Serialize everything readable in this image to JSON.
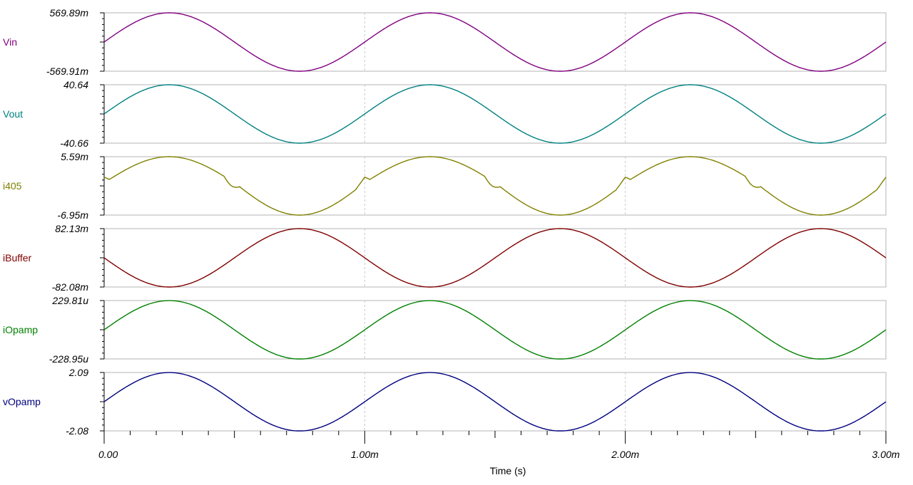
{
  "chart_data": {
    "type": "line",
    "xlabel": "Time (s)",
    "x_range": [
      0,
      0.003
    ],
    "x_ticks": [
      {
        "value": 0,
        "label": "0.00"
      },
      {
        "value": 0.001,
        "label": "1.00m"
      },
      {
        "value": 0.002,
        "label": "2.00m"
      },
      {
        "value": 0.003,
        "label": "3.00m"
      }
    ],
    "grid": "vertical dashed at major x ticks",
    "frequency_hz": 1000,
    "series": [
      {
        "name": "Vin",
        "color": "#800080",
        "ylim": [
          -0.56991,
          0.56989
        ],
        "ymax_label": "569.89m",
        "ymin_label": "-569.91m",
        "shape": "sine",
        "amplitude": 0.5699,
        "phase_deg": 0
      },
      {
        "name": "Vout",
        "color": "#008080",
        "ylim": [
          -40.66,
          40.64
        ],
        "ymax_label": "40.64",
        "ymin_label": "-40.66",
        "shape": "sine",
        "amplitude": 40.65,
        "phase_deg": 0
      },
      {
        "name": "i405",
        "color": "#808000",
        "ylim": [
          -0.00695,
          0.00559
        ],
        "ymax_label": "5.59m",
        "ymin_label": "-6.95m",
        "shape": "distorted-sine",
        "pos_amplitude": 0.00559,
        "neg_amplitude": 0.00695,
        "phase_deg": 0
      },
      {
        "name": "iBuffer",
        "color": "#800000",
        "ylim": [
          -0.08208,
          0.08213
        ],
        "ymax_label": "82.13m",
        "ymin_label": "-82.08m",
        "shape": "sine",
        "amplitude": 0.0821,
        "phase_deg": 180
      },
      {
        "name": "iOpamp",
        "color": "#008000",
        "ylim": [
          -0.00022895,
          0.00022981
        ],
        "ymax_label": "229.81u",
        "ymin_label": "-228.95u",
        "shape": "sine",
        "amplitude": 0.0002294,
        "phase_deg": 0
      },
      {
        "name": "vOpamp",
        "color": "#000080",
        "ylim": [
          -2.08,
          2.09
        ],
        "ymax_label": "2.09",
        "ymin_label": "-2.08",
        "shape": "sine",
        "amplitude": 2.085,
        "phase_deg": 0
      }
    ]
  }
}
